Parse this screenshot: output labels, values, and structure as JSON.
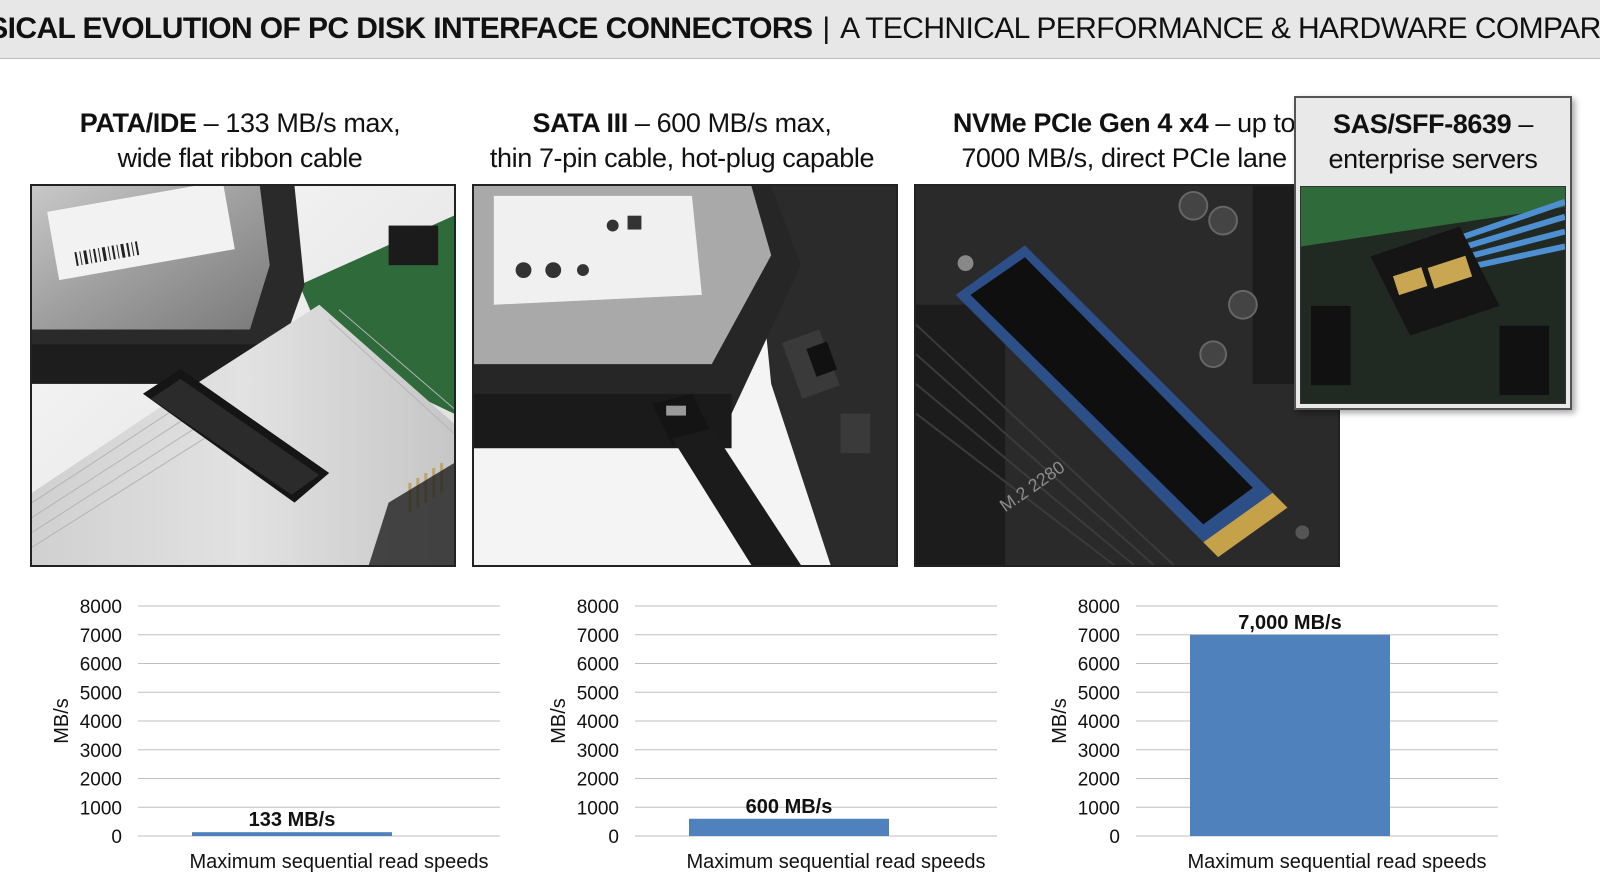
{
  "header": {
    "title_bold": "PHYSICAL EVOLUTION OF PC DISK INTERFACE CONNECTORS",
    "separator": "|",
    "title_rest": "A TECHNICAL PERFORMANCE & HARDWARE COMPARISON"
  },
  "panels": [
    {
      "name_bold": "PATA/IDE",
      "name_rest": " – 133 MB/s max,",
      "line2": "wide flat ribbon cable"
    },
    {
      "name_bold": "SATA III",
      "name_rest": " – 600 MB/s max,",
      "line2": "thin 7-pin cable, hot-plug capable"
    },
    {
      "name_bold": "NVMe PCIe Gen 4 x4",
      "name_rest": " – up to",
      "line2": "7000 MB/s, direct PCIe lane"
    },
    {
      "name_bold": "SAS/SFF-8639",
      "name_rest": " –",
      "line2": "enterprise servers"
    }
  ],
  "photo_labels": {
    "m2": "M.2 2280"
  },
  "colors": {
    "bar": "#4f81bd",
    "grid": "#bfbfbf",
    "header_bg": "#e7e7e7"
  },
  "chart_data": [
    {
      "type": "bar",
      "categories": [
        "Maximum sequential read speeds"
      ],
      "series": [
        {
          "values": [
            133
          ]
        }
      ],
      "data_labels": [
        "133 MB/s"
      ],
      "ylabel": "MB/s",
      "ylim": [
        0,
        8000
      ],
      "yticks": [
        "0",
        "1000",
        "2000",
        "3000",
        "4000",
        "5000",
        "6000",
        "7000",
        "8000"
      ],
      "grid": true
    },
    {
      "type": "bar",
      "categories": [
        "Maximum sequential read speeds"
      ],
      "series": [
        {
          "values": [
            600
          ]
        }
      ],
      "data_labels": [
        "600 MB/s"
      ],
      "ylabel": "MB/s",
      "ylim": [
        0,
        8000
      ],
      "yticks": [
        "0",
        "1000",
        "2000",
        "3000",
        "4000",
        "5000",
        "6000",
        "7000",
        "8000"
      ],
      "grid": true
    },
    {
      "type": "bar",
      "categories": [
        "Maximum sequential read speeds"
      ],
      "series": [
        {
          "values": [
            7000
          ]
        }
      ],
      "data_labels": [
        "7,000 MB/s"
      ],
      "ylabel": "MB/s",
      "ylim": [
        0,
        8000
      ],
      "yticks": [
        "0",
        "1000",
        "2000",
        "3000",
        "4000",
        "5000",
        "6000",
        "7000",
        "8000"
      ],
      "grid": true
    }
  ]
}
